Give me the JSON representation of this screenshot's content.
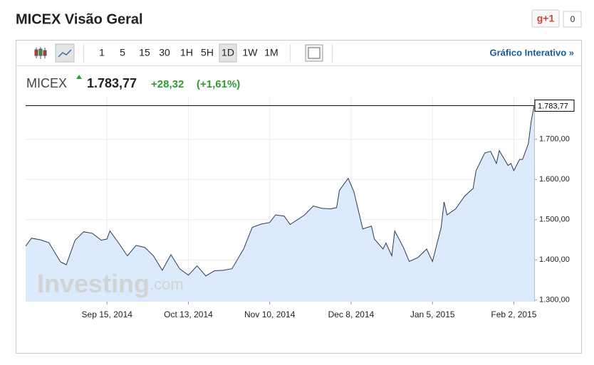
{
  "header": {
    "title": "MICEX Visão Geral",
    "share": "g+1",
    "share_count": "0"
  },
  "toolbar": {
    "ranges": [
      "1",
      "5",
      "15",
      "30",
      "1H",
      "5H",
      "1D",
      "1W",
      "1M"
    ],
    "selected": "1D",
    "link": "Gráfico Interativo »"
  },
  "brand": {
    "name": "Investing",
    "suffix": ".com"
  },
  "chart_data": {
    "type": "area",
    "symbol": "MICEX",
    "last_price": {
      "value": 1783.77,
      "label": "1.783,77"
    },
    "change": {
      "value": 28.32,
      "label": "+28,32"
    },
    "change_pct": {
      "value": 1.61,
      "label": "(+1,61%)"
    },
    "line_color": "#2e3a4f",
    "fill_color": "#d7e9fb",
    "grid": true,
    "x": [
      "2014-08-18",
      "2014-08-20",
      "2014-08-23",
      "2014-08-26",
      "2014-08-30",
      "2014-09-01",
      "2014-09-04",
      "2014-09-07",
      "2014-09-10",
      "2014-09-13",
      "2014-09-15",
      "2014-09-16",
      "2014-09-19",
      "2014-09-22",
      "2014-09-25",
      "2014-09-28",
      "2014-10-01",
      "2014-10-04",
      "2014-10-07",
      "2014-10-10",
      "2014-10-13",
      "2014-10-16",
      "2014-10-19",
      "2014-10-22",
      "2014-10-25",
      "2014-10-28",
      "2014-11-01",
      "2014-11-04",
      "2014-11-07",
      "2014-11-10",
      "2014-11-12",
      "2014-11-15",
      "2014-11-17",
      "2014-11-20",
      "2014-11-22",
      "2014-11-25",
      "2014-11-28",
      "2014-12-01",
      "2014-12-03",
      "2014-12-04",
      "2014-12-07",
      "2014-12-09",
      "2014-12-12",
      "2014-12-15",
      "2014-12-16",
      "2014-12-19",
      "2014-12-20",
      "2014-12-22",
      "2014-12-23",
      "2014-12-25",
      "2014-12-26",
      "2014-12-28",
      "2014-12-31",
      "2015-01-03",
      "2015-01-05",
      "2015-01-08",
      "2015-01-09",
      "2015-01-10",
      "2015-01-13",
      "2015-01-16",
      "2015-01-19",
      "2015-01-20",
      "2015-01-23",
      "2015-01-25",
      "2015-01-27",
      "2015-01-28",
      "2015-01-31",
      "2015-02-01",
      "2015-02-02",
      "2015-02-04",
      "2015-02-05",
      "2015-02-07",
      "2015-02-08",
      "2015-02-09"
    ],
    "values": [
      1434,
      1454,
      1450,
      1443,
      1395,
      1388,
      1449,
      1470,
      1466,
      1449,
      1452,
      1472,
      1442,
      1410,
      1436,
      1431,
      1410,
      1374,
      1413,
      1378,
      1362,
      1385,
      1360,
      1373,
      1374,
      1378,
      1427,
      1481,
      1489,
      1493,
      1512,
      1509,
      1488,
      1502,
      1512,
      1534,
      1528,
      1527,
      1530,
      1573,
      1603,
      1569,
      1477,
      1484,
      1452,
      1427,
      1442,
      1410,
      1472,
      1445,
      1431,
      1396,
      1406,
      1427,
      1396,
      1481,
      1544,
      1512,
      1527,
      1558,
      1578,
      1622,
      1666,
      1670,
      1640,
      1672,
      1635,
      1640,
      1622,
      1650,
      1650,
      1689,
      1746,
      1783.77
    ],
    "xlim": [
      "2014-08-18",
      "2015-02-09"
    ],
    "xticks": [
      {
        "value": "2014-09-15",
        "label": "Sep 15, 2014"
      },
      {
        "value": "2014-10-13",
        "label": "Oct 13, 2014"
      },
      {
        "value": "2014-11-10",
        "label": "Nov 10, 2014"
      },
      {
        "value": "2014-12-08",
        "label": "Dec 8, 2014"
      },
      {
        "value": "2015-01-05",
        "label": "Jan 5, 2015"
      },
      {
        "value": "2015-02-02",
        "label": "Feb 2, 2015"
      }
    ],
    "ylim": [
      1296,
      1804
    ],
    "yticks": [
      {
        "value": 1300,
        "label": "1.300,00"
      },
      {
        "value": 1400,
        "label": "1.400,00"
      },
      {
        "value": 1500,
        "label": "1.500,00"
      },
      {
        "value": 1600,
        "label": "1.600,00"
      },
      {
        "value": 1700,
        "label": "1.700,00"
      }
    ]
  }
}
